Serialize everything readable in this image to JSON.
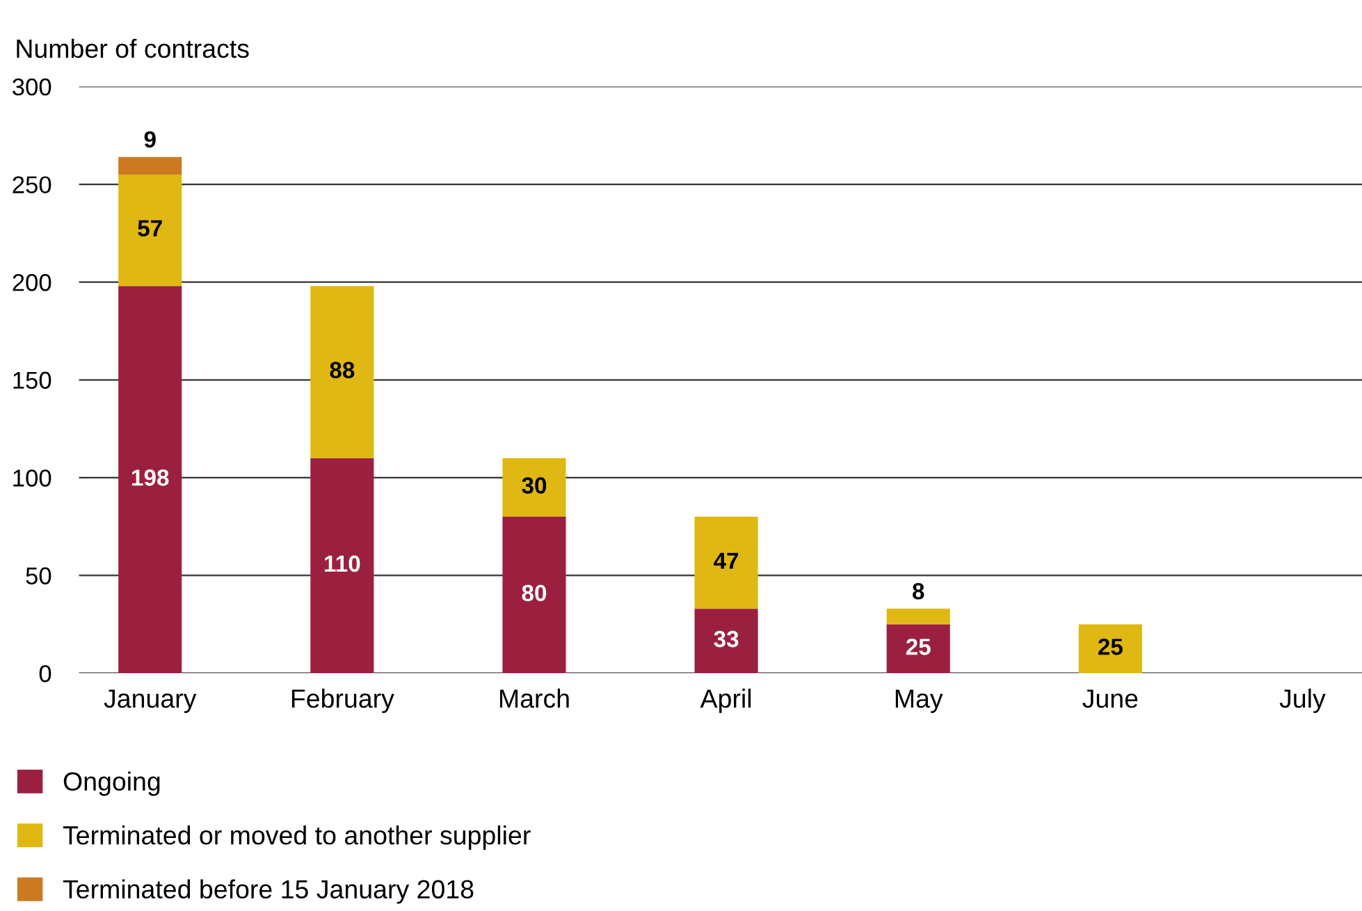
{
  "chart_data": {
    "type": "bar",
    "stacked": true,
    "ylabel": "Number of contracts",
    "categories": [
      "January",
      "February",
      "March",
      "April",
      "May",
      "June",
      "July"
    ],
    "series": [
      {
        "name": "Ongoing",
        "color": "#9b2040",
        "values": [
          198,
          110,
          80,
          33,
          25,
          null,
          null
        ]
      },
      {
        "name": "Terminated or moved to another supplier",
        "color": "#e0b814",
        "values": [
          57,
          88,
          30,
          47,
          8,
          25,
          null
        ]
      },
      {
        "name": "Terminated before 15 January 2018",
        "color": "#cc7a22",
        "values": [
          9,
          null,
          null,
          null,
          null,
          null,
          null
        ]
      }
    ],
    "ylim": [
      0,
      300
    ],
    "yticks": [
      0,
      50,
      100,
      150,
      200,
      250,
      300
    ],
    "grid": "y",
    "legend": "bottom",
    "data_labels": true
  }
}
